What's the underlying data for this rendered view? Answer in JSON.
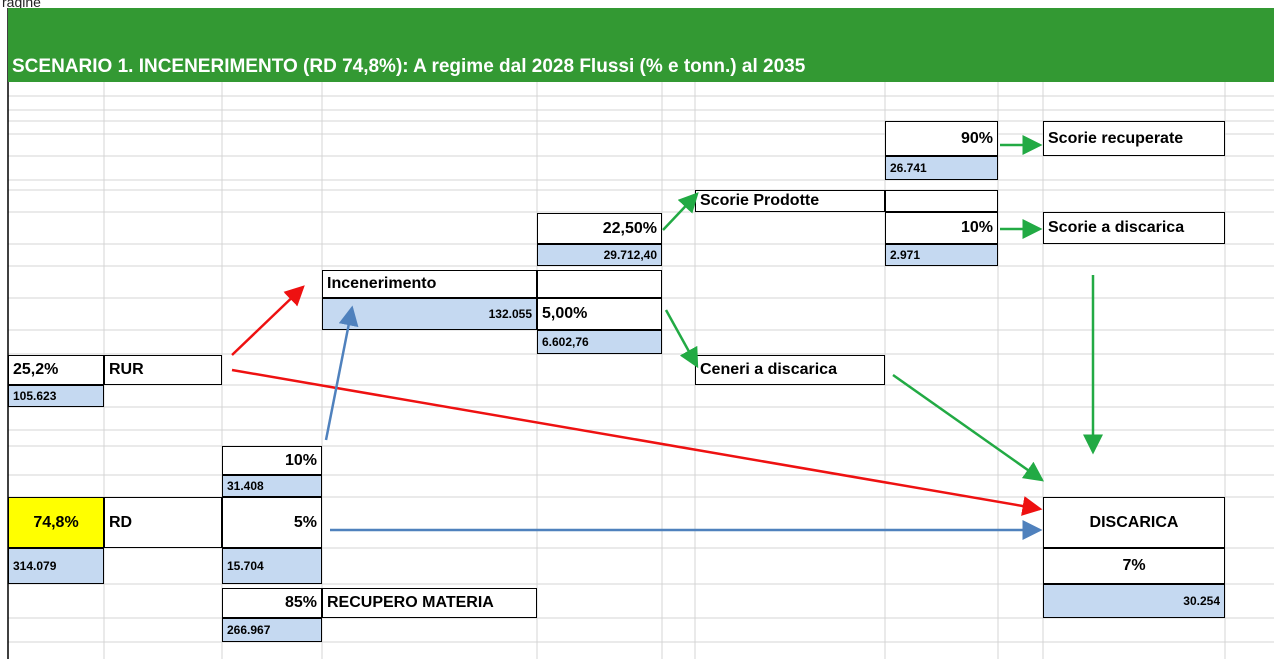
{
  "caption": "ragine",
  "header": {
    "title": "SCENARIO 1. INCENERIMENTO (RD 74,8%): A regime dal 2028 Flussi (% e tonn.) al 2035"
  },
  "cells": [
    "90%",
    "26.741",
    "Scorie recuperate",
    "Scorie Prodotte",
    "22,50%",
    "29.712,40",
    "10%",
    "2.971",
    "Scorie a discarica",
    "Incenerimento",
    "132.055",
    "5,00%",
    "6.602,76",
    "Ceneri a discarica",
    "25,2%",
    "RUR",
    "105.623",
    "10%",
    "31.408",
    "74,8%",
    "RD",
    "5%",
    "DISCARICA",
    "314.079",
    "15.704",
    "7%",
    "30.254",
    "85%",
    "RECUPERO MATERIA",
    "266.967"
  ]
}
